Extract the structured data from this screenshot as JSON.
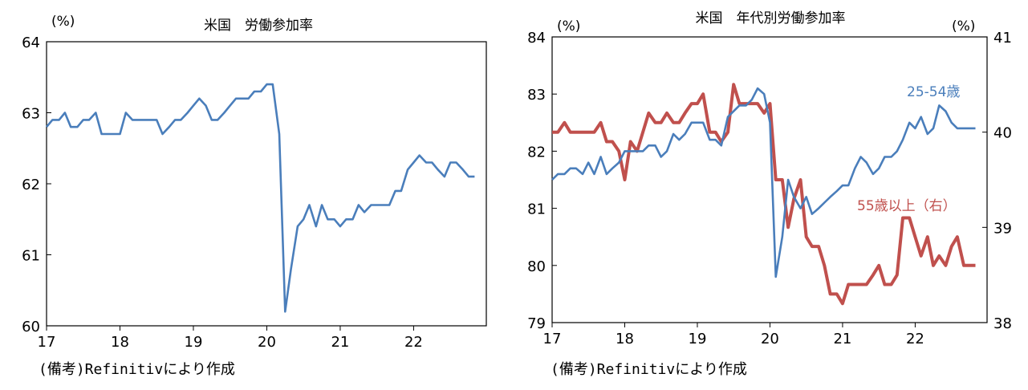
{
  "chart_data": [
    {
      "type": "line",
      "title": "米国　労働参加率",
      "y_unit": "(%)",
      "ylim": [
        60,
        64
      ],
      "y_ticks": [
        60,
        61,
        62,
        63,
        64
      ],
      "x_tick_labels": [
        "17",
        "18",
        "19",
        "20",
        "21",
        "22"
      ],
      "x_range": [
        2017.0,
        2022.99
      ],
      "grid": false,
      "source_note": "(備考)Refinitivにより作成",
      "series": [
        {
          "color": "#4a7ebb",
          "x": [
            2017.0,
            2017.08,
            2017.17,
            2017.25,
            2017.33,
            2017.42,
            2017.5,
            2017.58,
            2017.67,
            2017.75,
            2017.83,
            2017.92,
            2018.0,
            2018.08,
            2018.17,
            2018.25,
            2018.33,
            2018.42,
            2018.5,
            2018.58,
            2018.67,
            2018.75,
            2018.83,
            2018.92,
            2019.0,
            2019.08,
            2019.17,
            2019.25,
            2019.33,
            2019.42,
            2019.5,
            2019.58,
            2019.67,
            2019.75,
            2019.83,
            2019.92,
            2020.0,
            2020.08,
            2020.17,
            2020.25,
            2020.33,
            2020.42,
            2020.5,
            2020.58,
            2020.67,
            2020.75,
            2020.83,
            2020.92,
            2021.0,
            2021.08,
            2021.17,
            2021.25,
            2021.33,
            2021.42,
            2021.5,
            2021.58,
            2021.67,
            2021.75,
            2021.83,
            2021.92,
            2022.0,
            2022.08,
            2022.17,
            2022.25,
            2022.33,
            2022.42,
            2022.5,
            2022.58,
            2022.67,
            2022.75,
            2022.83
          ],
          "values": [
            62.8,
            62.9,
            62.9,
            63.0,
            62.8,
            62.8,
            62.9,
            62.9,
            63.0,
            62.7,
            62.7,
            62.7,
            62.7,
            63.0,
            62.9,
            62.9,
            62.9,
            62.9,
            62.9,
            62.7,
            62.8,
            62.9,
            62.9,
            63.0,
            63.1,
            63.2,
            63.1,
            62.9,
            62.9,
            63.0,
            63.1,
            63.2,
            63.2,
            63.2,
            63.3,
            63.3,
            63.4,
            63.4,
            62.7,
            60.2,
            60.8,
            61.4,
            61.5,
            61.7,
            61.4,
            61.7,
            61.5,
            61.5,
            61.4,
            61.5,
            61.5,
            61.7,
            61.6,
            61.7,
            61.7,
            61.7,
            61.7,
            61.9,
            61.9,
            62.2,
            62.3,
            62.4,
            62.3,
            62.3,
            62.2,
            62.1,
            62.3,
            62.3,
            62.2,
            62.1,
            62.1
          ]
        }
      ]
    },
    {
      "type": "line",
      "title": "米国　年代別労働参加率",
      "y_unit_left": "(%)",
      "y_unit_right": "(%)",
      "ylim_left": [
        79,
        84
      ],
      "ylim_right": [
        38,
        41
      ],
      "y_ticks_left": [
        79,
        80,
        81,
        82,
        83,
        84
      ],
      "y_ticks_right": [
        38,
        39,
        40,
        41
      ],
      "x_tick_labels": [
        "17",
        "18",
        "19",
        "20",
        "21",
        "22"
      ],
      "x_range": [
        2017.0,
        2022.99
      ],
      "grid": false,
      "source_note": "(備考)Refinitivにより作成",
      "series": [
        {
          "name": "25-54歳",
          "axis": "left",
          "color": "#4a7ebb",
          "x": [
            2017.0,
            2017.08,
            2017.17,
            2017.25,
            2017.33,
            2017.42,
            2017.5,
            2017.58,
            2017.67,
            2017.75,
            2017.83,
            2017.92,
            2018.0,
            2018.08,
            2018.17,
            2018.25,
            2018.33,
            2018.42,
            2018.5,
            2018.58,
            2018.67,
            2018.75,
            2018.83,
            2018.92,
            2019.0,
            2019.08,
            2019.17,
            2019.25,
            2019.33,
            2019.42,
            2019.5,
            2019.58,
            2019.67,
            2019.75,
            2019.83,
            2019.92,
            2020.0,
            2020.08,
            2020.17,
            2020.25,
            2020.33,
            2020.42,
            2020.5,
            2020.58,
            2020.67,
            2020.75,
            2020.83,
            2020.92,
            2021.0,
            2021.08,
            2021.17,
            2021.25,
            2021.33,
            2021.42,
            2021.5,
            2021.58,
            2021.67,
            2021.75,
            2021.83,
            2021.92,
            2022.0,
            2022.08,
            2022.17,
            2022.25,
            2022.33,
            2022.42,
            2022.5,
            2022.58,
            2022.67,
            2022.75,
            2022.83
          ],
          "values": [
            81.5,
            81.6,
            81.6,
            81.7,
            81.7,
            81.6,
            81.8,
            81.6,
            81.9,
            81.6,
            81.7,
            81.8,
            82.0,
            82.0,
            82.0,
            82.0,
            82.1,
            82.1,
            81.9,
            82.0,
            82.3,
            82.2,
            82.3,
            82.5,
            82.5,
            82.5,
            82.2,
            82.2,
            82.1,
            82.6,
            82.7,
            82.8,
            82.8,
            82.9,
            83.1,
            83.0,
            82.5,
            79.8,
            80.5,
            81.5,
            81.2,
            81.0,
            81.2,
            80.9,
            81.0,
            81.1,
            81.2,
            81.3,
            81.4,
            81.4,
            81.7,
            81.9,
            81.8,
            81.6,
            81.7,
            81.9,
            81.9,
            82.0,
            82.2,
            82.5,
            82.4,
            82.6,
            82.3,
            82.4,
            82.8,
            82.7,
            82.5,
            82.4,
            82.4,
            82.4,
            82.4
          ]
        },
        {
          "name": "55歳以上（右）",
          "axis": "right",
          "color": "#c0504d",
          "x": [
            2017.0,
            2017.08,
            2017.17,
            2017.25,
            2017.33,
            2017.42,
            2017.5,
            2017.58,
            2017.67,
            2017.75,
            2017.83,
            2017.92,
            2018.0,
            2018.08,
            2018.17,
            2018.25,
            2018.33,
            2018.42,
            2018.5,
            2018.58,
            2018.67,
            2018.75,
            2018.83,
            2018.92,
            2019.0,
            2019.08,
            2019.17,
            2019.25,
            2019.33,
            2019.42,
            2019.5,
            2019.58,
            2019.67,
            2019.75,
            2019.83,
            2019.92,
            2020.0,
            2020.08,
            2020.17,
            2020.25,
            2020.33,
            2020.42,
            2020.5,
            2020.58,
            2020.67,
            2020.75,
            2020.83,
            2020.92,
            2021.0,
            2021.08,
            2021.17,
            2021.25,
            2021.33,
            2021.42,
            2021.5,
            2021.58,
            2021.67,
            2021.75,
            2021.83,
            2021.92,
            2022.0,
            2022.08,
            2022.17,
            2022.25,
            2022.33,
            2022.42,
            2022.5,
            2022.58,
            2022.67,
            2022.75,
            2022.83
          ],
          "values": [
            40.0,
            40.0,
            40.1,
            40.0,
            40.0,
            40.0,
            40.0,
            40.0,
            40.1,
            39.9,
            39.9,
            39.8,
            39.5,
            39.9,
            39.8,
            40.0,
            40.2,
            40.1,
            40.1,
            40.2,
            40.1,
            40.1,
            40.2,
            40.3,
            40.3,
            40.4,
            40.0,
            40.0,
            39.9,
            40.0,
            40.5,
            40.3,
            40.3,
            40.3,
            40.3,
            40.2,
            40.3,
            39.5,
            39.5,
            39.0,
            39.3,
            39.5,
            38.9,
            38.8,
            38.8,
            38.6,
            38.3,
            38.3,
            38.2,
            38.4,
            38.4,
            38.4,
            38.4,
            38.5,
            38.6,
            38.4,
            38.4,
            38.5,
            39.1,
            39.1,
            38.9,
            38.7,
            38.9,
            38.6,
            38.7,
            38.6,
            38.8,
            38.9,
            38.6,
            38.6,
            38.6
          ]
        }
      ]
    }
  ]
}
